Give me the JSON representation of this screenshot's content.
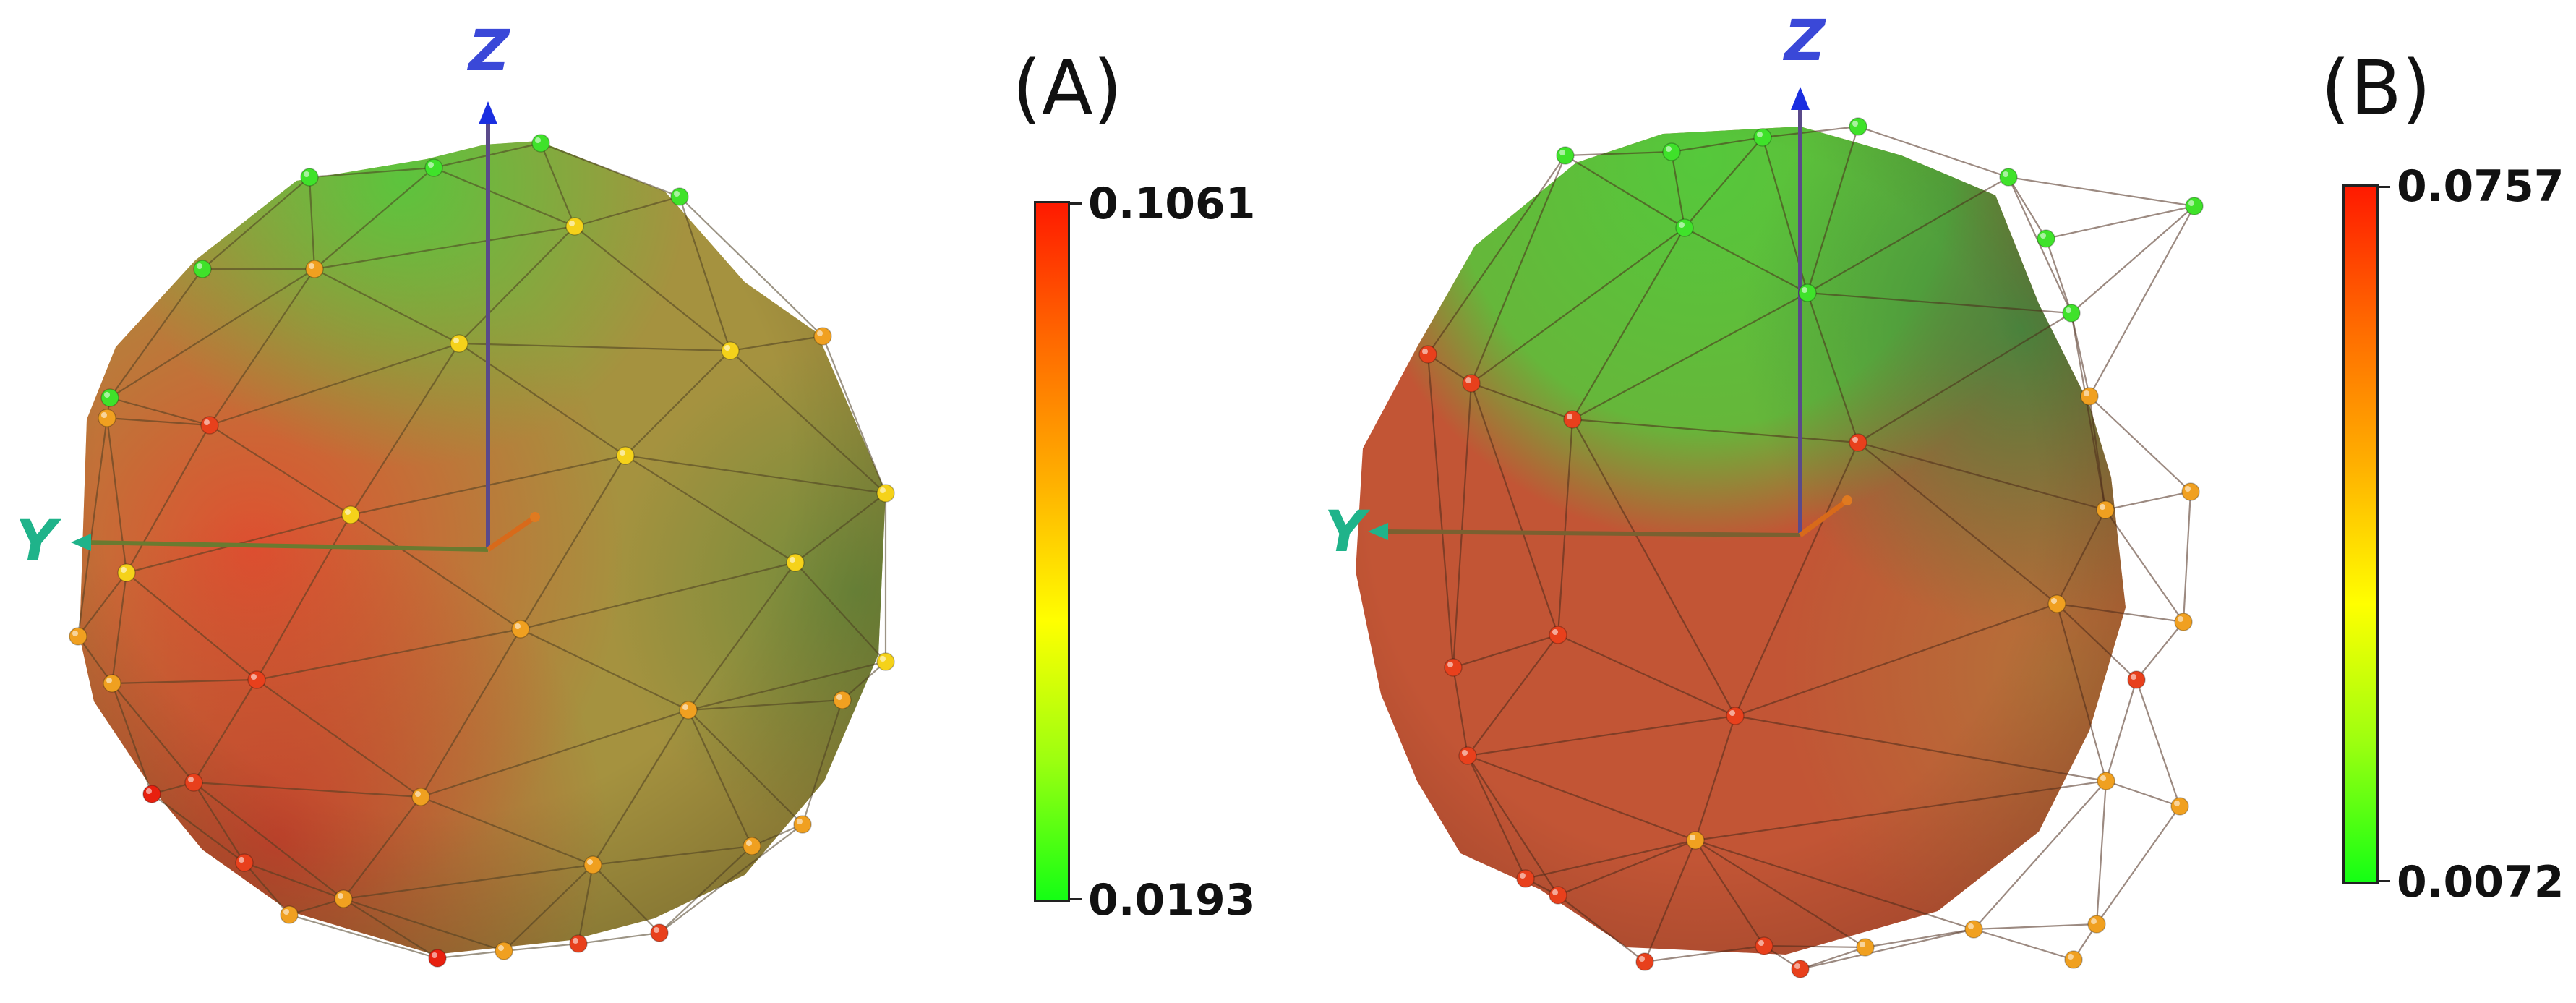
{
  "panels": [
    {
      "id": "A",
      "label": "(A)",
      "axis_labels": {
        "vertical": "Z",
        "horizontal": "Y"
      },
      "colorbar": {
        "max_label": "0.1061",
        "min_label": "0.0193",
        "colors_top_to_bottom": [
          "#ff1a00",
          "#ff6a00",
          "#ffb000",
          "#ffff00",
          "#9cff10",
          "#14ff14"
        ]
      },
      "surface_color": "#a5923f",
      "hot_region_color": "#d0452c",
      "cool_region_color": "#5fb83d"
    },
    {
      "id": "B",
      "label": "(B)",
      "axis_labels": {
        "vertical": "Z",
        "horizontal": "Y"
      },
      "colorbar": {
        "max_label": "0.0757",
        "min_label": "0.0072",
        "colors_top_to_bottom": [
          "#ff1a00",
          "#ff6a00",
          "#ffb000",
          "#ffff00",
          "#9cff10",
          "#14ff14"
        ]
      },
      "surface_color": "#c25535",
      "hot_region_color": "#d93a26",
      "cool_region_color": "#4fb83a"
    }
  ]
}
